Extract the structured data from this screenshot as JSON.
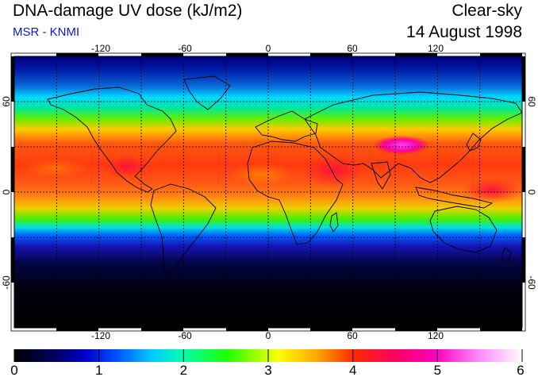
{
  "header": {
    "title": "DNA-damage UV dose (kJ/m2)",
    "source": "MSR - KNMI",
    "sky_condition": "Clear-sky",
    "date": "14 August 1998"
  },
  "map": {
    "longitude_ticks": [
      "-120",
      "-60",
      "0",
      "60",
      "120"
    ],
    "latitude_ticks_left": [
      "60",
      "0",
      "-60"
    ],
    "latitude_ticks_right": [
      "60",
      "0",
      "-60"
    ]
  },
  "colorbar": {
    "labels": [
      "0",
      "1",
      "2",
      "3",
      "4",
      "5",
      "6"
    ],
    "min": 0,
    "max": 6
  },
  "colors": {
    "subtitle": "#1010e0"
  }
}
